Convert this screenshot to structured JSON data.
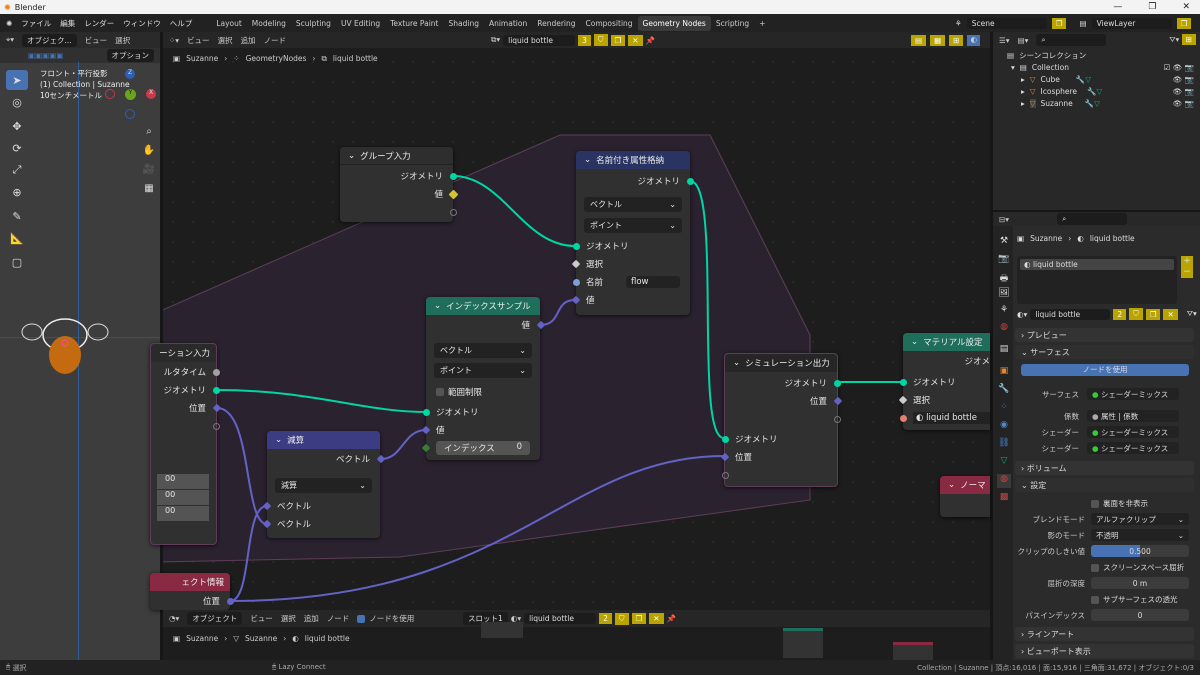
{
  "window": {
    "title": "Blender",
    "controls": [
      "—",
      "❐",
      "✕"
    ]
  },
  "menu": {
    "items": [
      "ファイル",
      "編集",
      "レンダー",
      "ウィンドウ",
      "ヘルプ"
    ],
    "workspaces": [
      "Layout",
      "Modeling",
      "Sculpting",
      "UV Editing",
      "Texture Paint",
      "Shading",
      "Animation",
      "Rendering",
      "Compositing",
      "Geometry Nodes",
      "Scripting",
      "+"
    ],
    "active_workspace": "Geometry Nodes",
    "scene": "Scene",
    "view_layer": "ViewLayer"
  },
  "viewport": {
    "mode": "オブジェク...",
    "menus": [
      "ビュー",
      "選択"
    ],
    "options": "オプション",
    "info": [
      "フロント・平行投影",
      "(1) Collection | Suzanne",
      "10センチメートル"
    ],
    "axes": {
      "z": "Z",
      "y": "Y",
      "x": "X"
    }
  },
  "node_editor": {
    "menus": [
      "ビュー",
      "選択",
      "追加",
      "ノード"
    ],
    "tree_name": "liquid bottle",
    "users": "3",
    "breadcrumb": [
      "Suzanne",
      "GeometryNodes",
      "liquid bottle"
    ],
    "nodes": {
      "group_input": {
        "title": "グループ入力",
        "outputs": [
          "ジオメトリ",
          "値"
        ]
      },
      "store_attr": {
        "title": "名前付き属性格納",
        "output": "ジオメトリ",
        "type": "ベクトル",
        "domain": "ポイント",
        "inputs": {
          "geometry": "ジオメトリ",
          "selection": "選択",
          "name_label": "名前",
          "name_value": "flow",
          "value": "値"
        }
      },
      "sample_index": {
        "title": "インデックスサンプル",
        "output": "値",
        "type": "ベクトル",
        "domain": "ポイント",
        "clamp": "範囲制限",
        "inputs": {
          "geometry": "ジオメトリ",
          "value": "値",
          "index_label": "インデックス",
          "index_value": "0"
        }
      },
      "subtract": {
        "title": "減算",
        "output": "ベクトル",
        "operation": "減算",
        "inputs": [
          "ベクトル",
          "ベクトル"
        ]
      },
      "sim_input": {
        "title": "ーション入力",
        "outputs": [
          "ルタタイム",
          "ジオメトリ",
          "位置"
        ],
        "values": [
          "00",
          "00",
          "00"
        ]
      },
      "object_info": {
        "title": "ェクト情報",
        "output": "位置"
      },
      "sim_output": {
        "title": "シミュレーション出力",
        "outputs": [
          "ジオメトリ",
          "位置"
        ],
        "inputs": [
          "ジオメトリ",
          "位置"
        ]
      },
      "set_material": {
        "title": "マテリアル設定",
        "output": "ジオメ",
        "inputs": {
          "geometry": "ジオメトリ",
          "selection": "選択",
          "material": "liquid bottle"
        }
      },
      "normal": {
        "title": "ノーマ"
      }
    }
  },
  "shader_editor": {
    "mode": "オブジェクト",
    "menus": [
      "ビュー",
      "選択",
      "追加",
      "ノード"
    ],
    "use_nodes": "ノードを使用",
    "slot": "スロット1",
    "material": "liquid bottle",
    "users": "2",
    "breadcrumb": [
      "Suzanne",
      "Suzanne",
      "liquid bottle"
    ]
  },
  "outliner": {
    "scene_collection": "シーンコレクション",
    "collection": "Collection",
    "objects": [
      "Cube",
      "Icosphere",
      "Suzanne"
    ]
  },
  "properties": {
    "breadcrumb": [
      "Suzanne",
      "liquid bottle"
    ],
    "slot": "liquid bottle",
    "material": "liquid bottle",
    "users": "2",
    "sections": {
      "preview": "プレビュー",
      "surface": "サーフェス",
      "volume": "ボリューム",
      "settings": "設定",
      "lineart": "ラインアート",
      "viewport": "ビューポート表示"
    },
    "use_nodes": "ノードを使用",
    "surface_rows": [
      {
        "label": "サーフェス",
        "value": "シェーダーミックス"
      },
      {
        "label": "係数",
        "value": "属性 | 係数"
      },
      {
        "label": "シェーダー",
        "value": "シェーダーミックス"
      },
      {
        "label": "シェーダー",
        "value": "シェーダーミックス"
      }
    ],
    "settings": {
      "backface": "裏面を非表示",
      "blend_label": "ブレンドモード",
      "blend": "アルファクリップ",
      "shadow_label": "影のモード",
      "shadow": "不透明",
      "clip_label": "クリップのしきい値",
      "clip": "0.500",
      "clip_fraction": 0.5,
      "ssr": "スクリーンスペース屈折",
      "depth_label": "屈折の深度",
      "depth": "0 m",
      "sss": "サブサーフェスの透光",
      "pass_label": "パスインデックス",
      "pass": "0"
    }
  },
  "status": {
    "left": "選択",
    "middle": "Lazy Connect",
    "right": "Collection | Suzanne | 頂点:16,016 | 面:15,916 | 三角面:31,672 | オブジェクト:0/3"
  },
  "colors": {
    "geometry": "#00d6a3",
    "vector": "#6363c7",
    "accent": "#4772b3",
    "warn": "#b9a400"
  }
}
